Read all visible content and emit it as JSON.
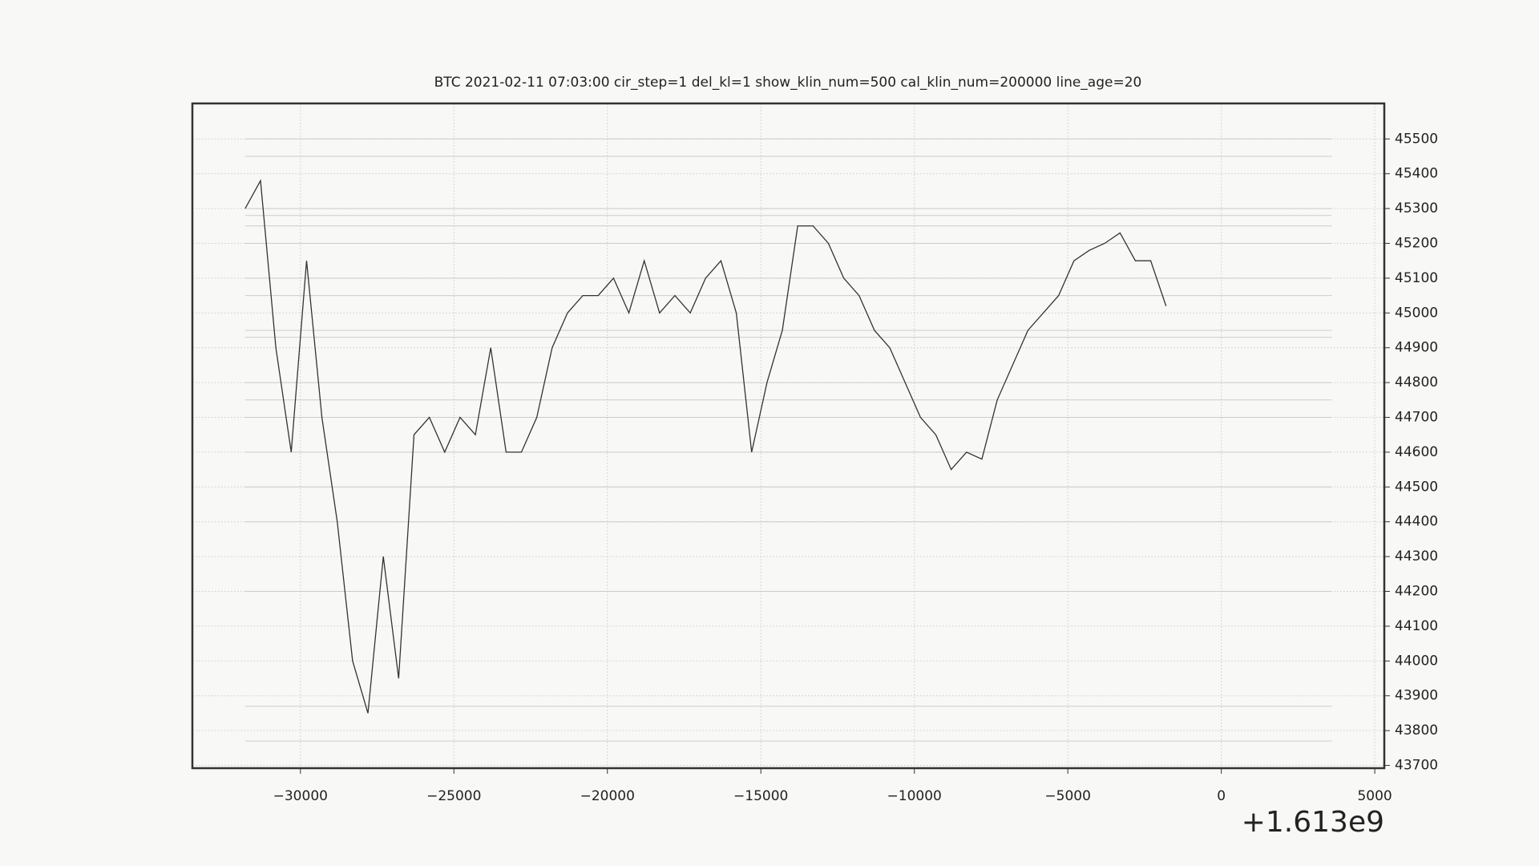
{
  "chart_data": {
    "type": "line",
    "title": "BTC    2021-02-11 07:03:00 cir_step=1 del_kl=1 show_klin_num=500 cal_klin_num=200000 line_age=20",
    "x_offset_label": "+1.613e9",
    "x": [
      -31800,
      -31300,
      -30800,
      -30300,
      -29800,
      -29300,
      -28800,
      -28300,
      -27800,
      -27300,
      -26800,
      -26300,
      -25800,
      -25300,
      -24800,
      -24300,
      -23800,
      -23300,
      -22800,
      -22300,
      -21800,
      -21300,
      -20800,
      -20300,
      -19800,
      -19300,
      -18800,
      -18300,
      -17800,
      -17300,
      -16800,
      -16300,
      -15800,
      -15300,
      -14800,
      -14300,
      -13800,
      -13300,
      -12800,
      -12300,
      -11800,
      -11300,
      -10800,
      -10300,
      -9800,
      -9300,
      -8800,
      -8300,
      -7800,
      -7300,
      -6800,
      -6300,
      -5800,
      -5300,
      -4800,
      -4300,
      -3800,
      -3300,
      -2800,
      -2300,
      -1800
    ],
    "series": [
      {
        "name": "BTC",
        "color": "#333333",
        "values": [
          45300,
          45380,
          44900,
          44600,
          45150,
          44700,
          44400,
          44000,
          43850,
          44300,
          43950,
          44650,
          44700,
          44600,
          44700,
          44650,
          44900,
          44600,
          44600,
          44700,
          44900,
          45000,
          45050,
          45050,
          45100,
          45000,
          45150,
          45000,
          45050,
          45000,
          45100,
          45150,
          45000,
          44600,
          44800,
          44950,
          45250,
          45250,
          45200,
          45100,
          45050,
          44950,
          44900,
          44800,
          44700,
          44650,
          44550,
          44600,
          44580,
          44750,
          44850,
          44950,
          45000,
          45050,
          45150,
          45180,
          45200,
          45230,
          45150,
          45150,
          45020
        ]
      }
    ],
    "hlines": {
      "xmin": -31800,
      "xmax": 3600,
      "color": "#cccccc",
      "values": [
        45500,
        45450,
        45300,
        45280,
        45250,
        45200,
        45100,
        45050,
        44950,
        44930,
        44800,
        44750,
        44700,
        44600,
        44500,
        44400,
        44200,
        43870,
        43770
      ]
    },
    "xlim": [
      -33520,
      5310
    ],
    "ylim": [
      43692,
      45602
    ],
    "xticks": [
      {
        "value": -30000,
        "label": "−30000"
      },
      {
        "value": -25000,
        "label": "−25000"
      },
      {
        "value": -20000,
        "label": "−20000"
      },
      {
        "value": -15000,
        "label": "−15000"
      },
      {
        "value": -10000,
        "label": "−10000"
      },
      {
        "value": -5000,
        "label": "−5000"
      },
      0,
      5000
    ],
    "yticks": [
      43700,
      43800,
      43900,
      44000,
      44100,
      44200,
      44300,
      44400,
      44500,
      44600,
      44700,
      44800,
      44900,
      45000,
      45100,
      45200,
      45300,
      45400,
      45500
    ],
    "grid": true
  }
}
